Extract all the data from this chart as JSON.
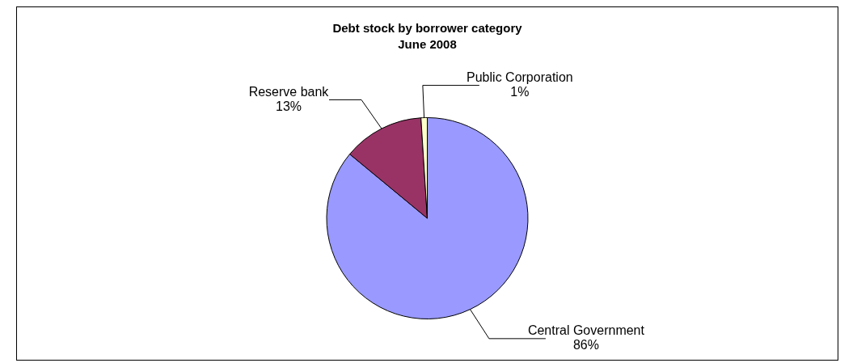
{
  "chart_data": {
    "type": "pie",
    "title": "Debt stock by borrower category",
    "subtitle": "June 2008",
    "categories": [
      "Central Government",
      "Reserve bank",
      "Public Corporation"
    ],
    "values": [
      86,
      13,
      1
    ],
    "colors": [
      "#9999ff",
      "#993366",
      "#ffffcc"
    ],
    "value_labels": [
      "86%",
      "13%",
      "1%"
    ],
    "legend": false
  }
}
